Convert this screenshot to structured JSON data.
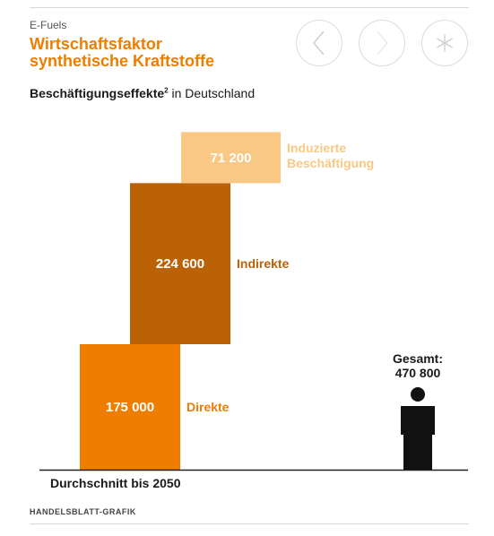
{
  "header": {
    "kicker": "E-Fuels",
    "title_line1": "Wirtschaftsfaktor",
    "title_line2": "synthetische Kraftstoffe",
    "subtitle_bold": "Beschäftigungseffekte",
    "subtitle_sup": "2",
    "subtitle_rest": " in Deutschland"
  },
  "nav": {
    "prev_icon": "chevron-left-icon",
    "next_icon": "chevron-right-icon",
    "share_icon": "asterisk-icon"
  },
  "colors": {
    "accent": "#ee7d00",
    "direkte": "#ee7d00",
    "indirekte": "#bb6207",
    "induzierte": "#f9c884",
    "person": "#111111",
    "axis": "#222222"
  },
  "chart_data": {
    "type": "bar",
    "stacked": true,
    "segments": [
      {
        "label": "Direkte",
        "value": 175000,
        "value_label": "175 000"
      },
      {
        "label": "Indirekte",
        "value": 224600,
        "value_label": "224 600"
      },
      {
        "label": "Induzierte Beschäftigung",
        "label_line1": "Induzierte",
        "label_line2": "Beschäftigung",
        "value": 71200,
        "value_label": "71 200"
      }
    ],
    "total": {
      "label": "Gesamt:",
      "value": 470800,
      "value_label": "470 800"
    },
    "xlabel": "Durchschnitt bis 2050"
  },
  "footer": {
    "source": "HANDELSBLATT-GRAFIK"
  }
}
